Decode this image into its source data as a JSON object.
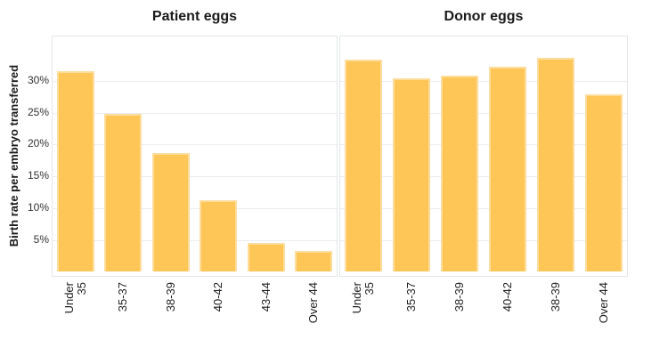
{
  "chart_data": {
    "type": "bar",
    "title": "",
    "ylabel": "Birth rate per embryo transferred",
    "xlabel": "",
    "y_tick_labels": [
      "5%",
      "10%",
      "15%",
      "20%",
      "25%",
      "30%"
    ],
    "ylim": [
      0,
      37
    ],
    "grid": true,
    "legend": "none",
    "bar_color": "#fdc657",
    "bar_border_color": "#fedd9c",
    "gridline_color": "#e9edef",
    "panel_border_color": "#e2e6e8",
    "panels": [
      {
        "title": "Patient eggs",
        "categories": [
          "Under\n35",
          "35-37",
          "38-39",
          "40-42",
          "43-44",
          "Over 44"
        ],
        "values": [
          31.3,
          24.6,
          18.5,
          11.1,
          4.4,
          3.2
        ]
      },
      {
        "title": "Donor eggs",
        "categories": [
          "Under\n35",
          "35-37",
          "38-39",
          "40-42",
          "38-39",
          "Over 44"
        ],
        "values": [
          33.1,
          30.2,
          30.7,
          32.1,
          33.4,
          27.7
        ]
      }
    ]
  }
}
